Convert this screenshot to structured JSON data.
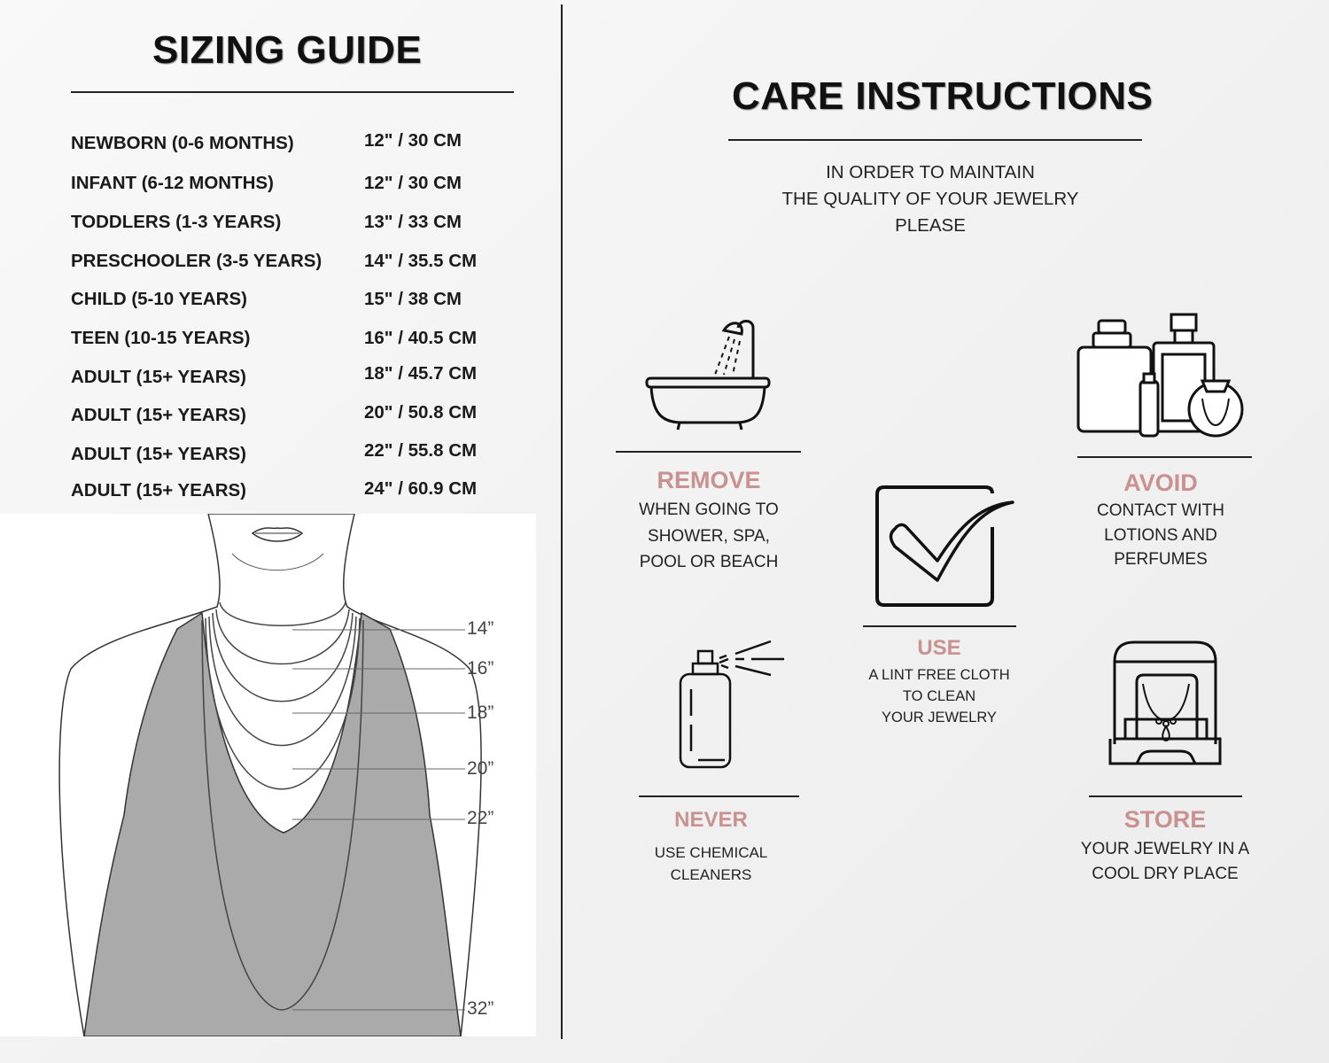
{
  "sizing": {
    "title": "SIZING GUIDE",
    "rows": [
      {
        "label": "NEWBORN (0-6 MONTHS)",
        "size": "12\" / 30 CM"
      },
      {
        "label": "INFANT (6-12 MONTHS)",
        "size": "12\" / 30 CM"
      },
      {
        "label": "TODDLERS (1-3 YEARS)",
        "size": "13\" / 33 CM"
      },
      {
        "label": "PRESCHOOLER (3-5 YEARS)",
        "size": "14\" / 35.5 CM"
      },
      {
        "label": "CHILD (5-10 YEARS)",
        "size": "15\" / 38 CM"
      },
      {
        "label": "TEEN (10-15 YEARS)",
        "size": "16\" / 40.5 CM"
      },
      {
        "label": "ADULT (15+ YEARS)",
        "size": "18\" / 45.7 CM"
      },
      {
        "label": "ADULT (15+ YEARS)",
        "size": "20\" / 50.8 CM"
      },
      {
        "label": "ADULT (15+ YEARS)",
        "size": "22\" / 55.8 CM"
      },
      {
        "label": "ADULT (15+ YEARS)",
        "size": "24\" / 60.9 CM"
      }
    ],
    "diagram_labels": [
      "14”",
      "16”",
      "18”",
      "20”",
      "22”",
      "32”"
    ]
  },
  "care": {
    "title": "CARE INSTRUCTIONS",
    "intro": [
      "IN ORDER TO MAINTAIN",
      "THE QUALITY OF YOUR JEWELRY",
      "PLEASE"
    ],
    "accent_color": "#c99190",
    "items": [
      {
        "icon": "bathtub-icon",
        "heading": "REMOVE",
        "lines": [
          "WHEN GOING TO",
          "SHOWER, SPA,",
          "POOL OR BEACH"
        ]
      },
      {
        "icon": "perfume-bottles-icon",
        "heading": "AVOID",
        "lines": [
          "CONTACT WITH",
          "LOTIONS AND",
          "PERFUMES"
        ]
      },
      {
        "icon": "checkbox-icon",
        "heading": "USE",
        "lines": [
          "A LINT FREE CLOTH",
          "TO CLEAN",
          "YOUR JEWELRY"
        ]
      },
      {
        "icon": "spray-bottle-icon",
        "heading": "NEVER",
        "lines": [
          "USE CHEMICAL",
          "CLEANERS"
        ]
      },
      {
        "icon": "jewelry-box-icon",
        "heading": "STORE",
        "lines": [
          "YOUR JEWELRY IN A",
          "COOL DRY PLACE"
        ]
      }
    ]
  }
}
